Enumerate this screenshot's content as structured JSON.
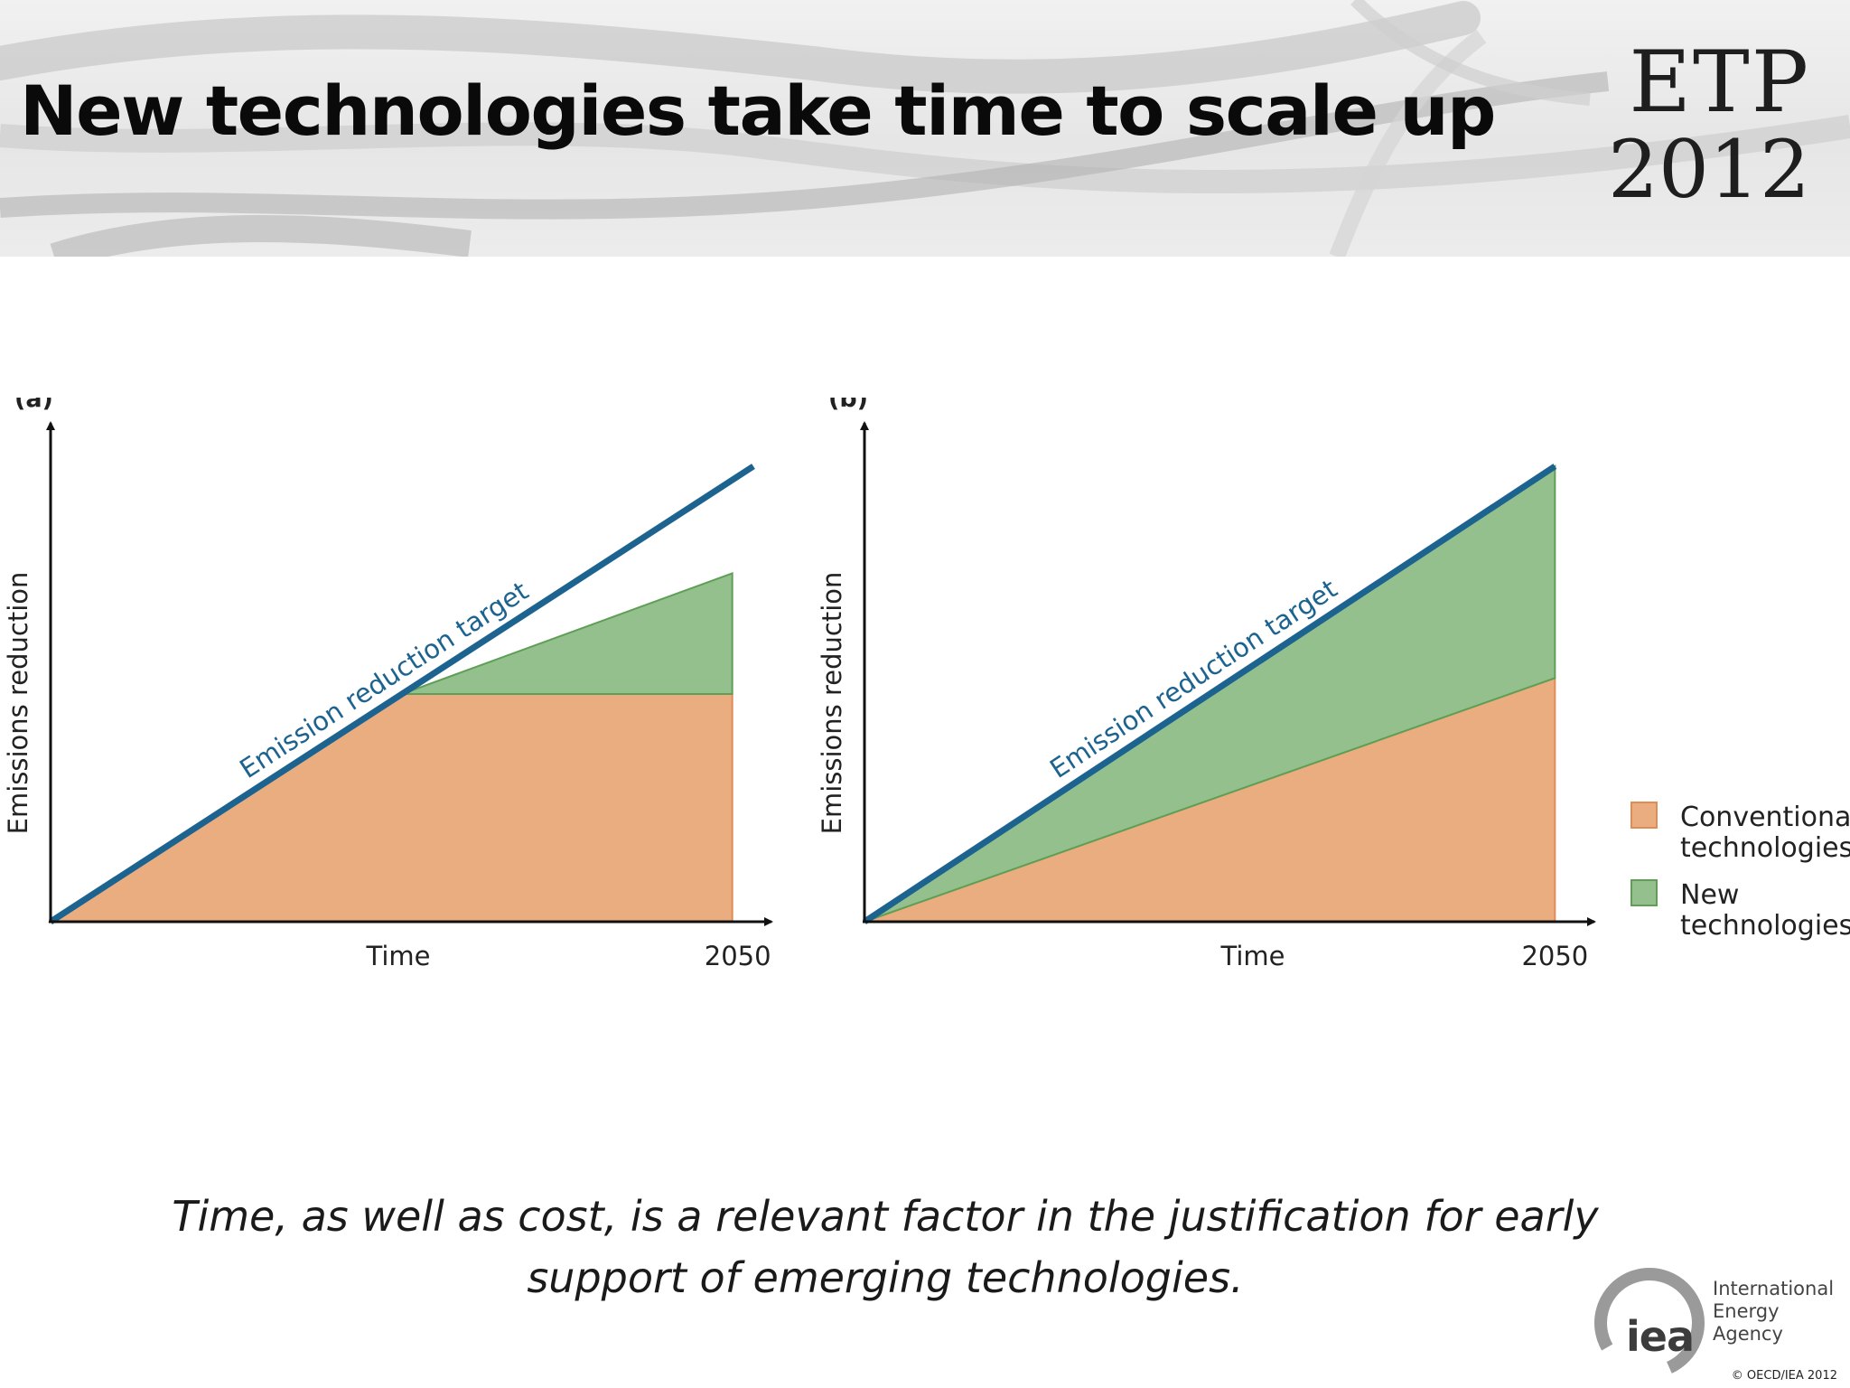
{
  "slide": {
    "title": "New technologies take time to scale up",
    "logo_line1": "ETP",
    "logo_line2": "2012",
    "caption_line1": "Time, as well as cost, is a relevant factor in the justification for early",
    "caption_line2": "support of emerging technologies.",
    "iea_letters": "iea",
    "iea_name_line1": "International",
    "iea_name_line2": "Energy Agency",
    "copyright": "© OECD/IEA 2012"
  },
  "legend": {
    "items": [
      {
        "label_line1": "Conventional",
        "label_line2": "technologies",
        "color": "#e9ad80"
      },
      {
        "label_line1": "New",
        "label_line2": "technologies",
        "color": "#94c08e"
      }
    ],
    "placement": "right"
  },
  "colors": {
    "conventional_fill": "#e9ad80",
    "conventional_stroke": "#e08c57",
    "new_fill": "#94c08e",
    "new_stroke": "#5e9f55",
    "target_line": "#1c6390",
    "axis": "#111111"
  },
  "chart_data": [
    {
      "type": "area",
      "panel_label": "(a)",
      "title": "",
      "xlabel": "Time",
      "ylabel": "Emissions reduction",
      "x_tick_end": "2050",
      "xlim": [
        0,
        1.0
      ],
      "ylim": [
        0,
        1.0
      ],
      "target_label": "Emission reduction target",
      "target": {
        "x": [
          0,
          1.0
        ],
        "y": [
          0,
          1.0
        ]
      },
      "series": [
        {
          "name": "Conventional technologies",
          "x": [
            0,
            0.5,
            0.97,
            0.97
          ],
          "y": [
            0,
            0.5,
            0.5,
            0
          ]
        },
        {
          "name": "New technologies",
          "x": [
            0.5,
            0.97
          ],
          "y_lower": [
            0.5,
            0.5
          ],
          "y_upper": [
            0.5,
            0.765
          ]
        }
      ]
    },
    {
      "type": "area",
      "panel_label": "(b)",
      "title": "",
      "xlabel": "Time",
      "ylabel": "Emissions reduction",
      "x_tick_end": "2050",
      "xlim": [
        0,
        1.0
      ],
      "ylim": [
        0,
        1.0
      ],
      "target_label": "Emission reduction target",
      "target": {
        "x": [
          0,
          0.97
        ],
        "y": [
          0,
          1.0
        ]
      },
      "series": [
        {
          "name": "Conventional technologies",
          "x": [
            0,
            0.97,
            0.97
          ],
          "y": [
            0,
            0.535,
            0
          ]
        },
        {
          "name": "New technologies",
          "x": [
            0,
            0.97
          ],
          "y_lower": [
            0,
            0.535
          ],
          "y_upper": [
            0,
            1.0
          ]
        }
      ]
    }
  ]
}
